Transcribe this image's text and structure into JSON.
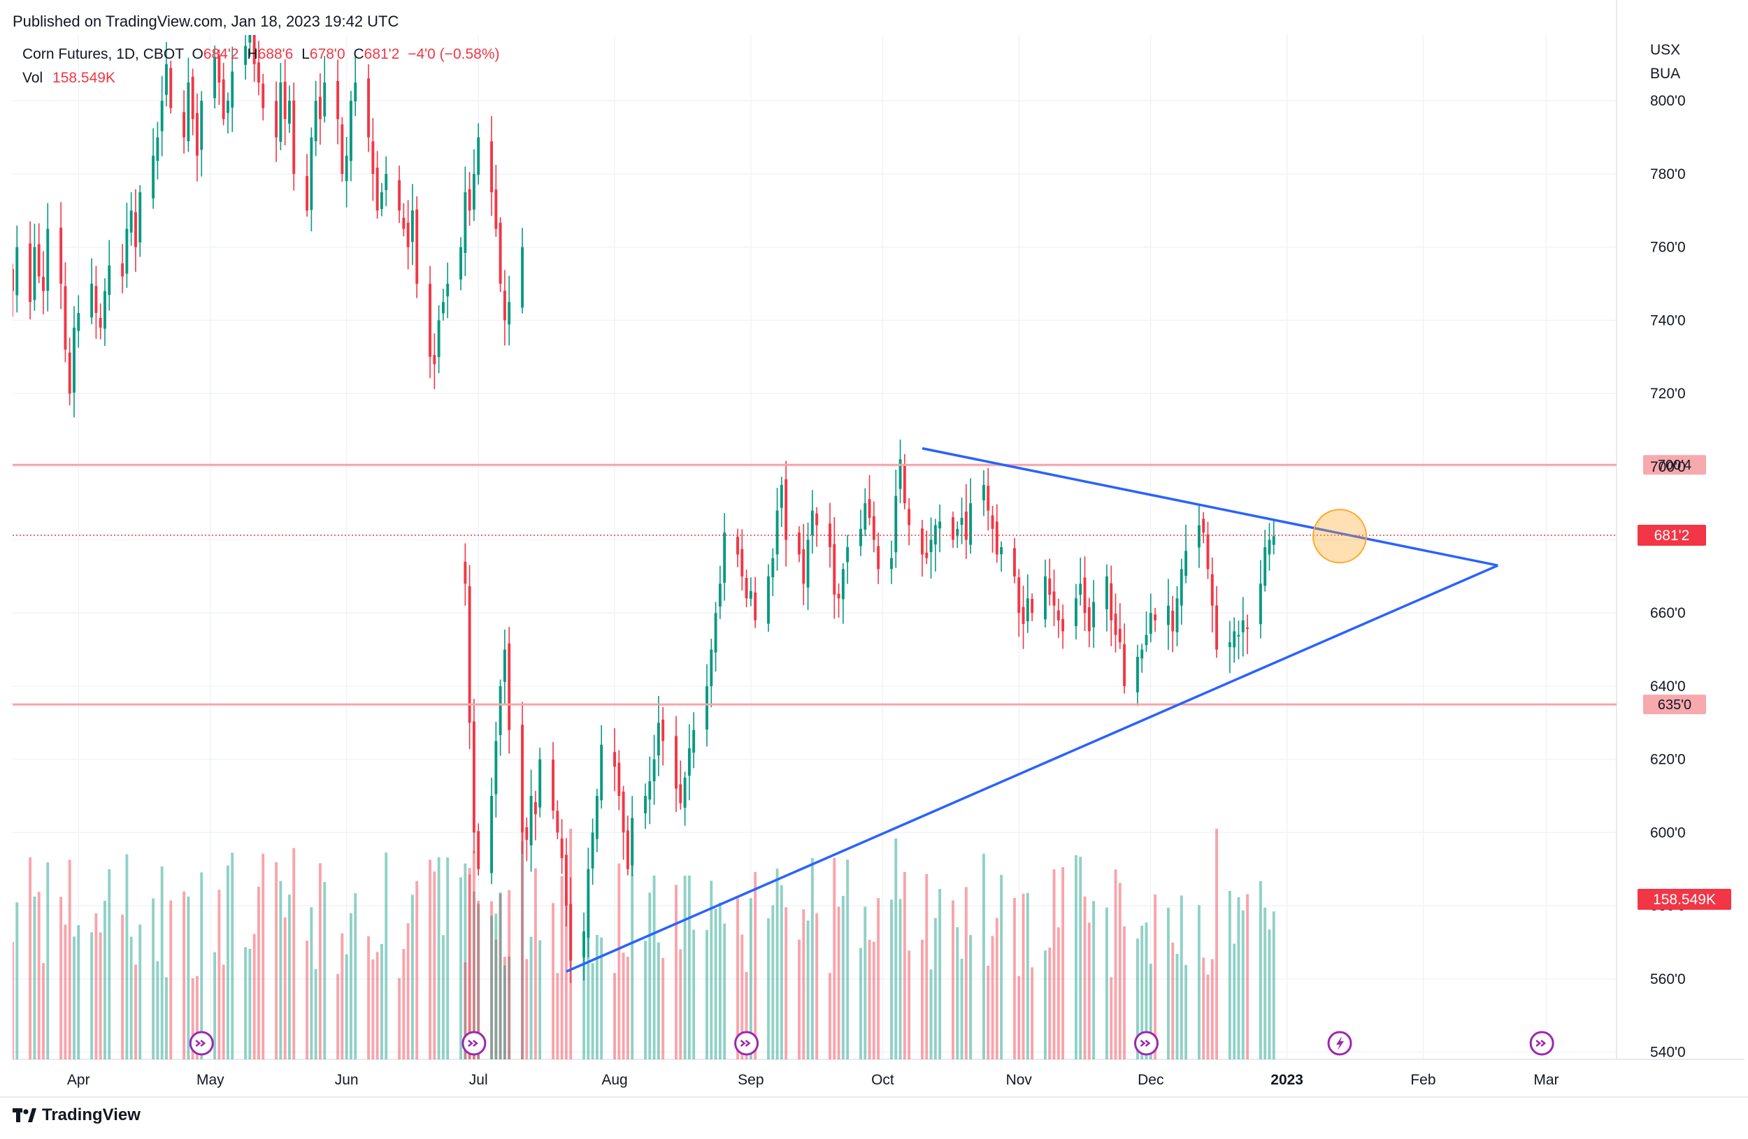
{
  "published": "Published on TradingView.com, Jan 18, 2023 19:42 UTC",
  "legend": {
    "symbol": "Corn Futures, 1D, CBOT",
    "o_label": "O",
    "o_value": "684'2",
    "h_label": "H",
    "h_value": "688'6",
    "l_label": "L",
    "l_value": "678'0",
    "c_label": "C",
    "c_value": "681'2",
    "change": "−4'0 (−0.58%)",
    "vol_label": "Vol",
    "vol_value": "158.549K"
  },
  "currency": "USX",
  "unit": "BUA",
  "footer_logo": "TradingView",
  "colors": {
    "up": "#089981",
    "down": "#f23645",
    "trend": "#2962ff",
    "level": "#f7a4a9",
    "event": "#9c27b0"
  },
  "chart_data": {
    "type": "candlestick",
    "title": "Corn Futures, 1D, CBOT",
    "y_ticks": [
      "800'0",
      "780'0",
      "760'0",
      "740'0",
      "720'0",
      "700'0",
      "680'0",
      "660'0",
      "640'0",
      "620'0",
      "600'0",
      "580'0",
      "560'0",
      "540'0"
    ],
    "y_tick_values": [
      800,
      780,
      760,
      740,
      720,
      700,
      680,
      660,
      640,
      620,
      600,
      580,
      560,
      540
    ],
    "ylim": [
      538,
      818
    ],
    "x_ticks": [
      {
        "label": "Apr",
        "date": "2022-04-01",
        "bold": false
      },
      {
        "label": "May",
        "date": "2022-05-01",
        "bold": false
      },
      {
        "label": "Jun",
        "date": "2022-06-01",
        "bold": false
      },
      {
        "label": "Jul",
        "date": "2022-07-01",
        "bold": false
      },
      {
        "label": "Aug",
        "date": "2022-08-01",
        "bold": false
      },
      {
        "label": "Sep",
        "date": "2022-09-01",
        "bold": false
      },
      {
        "label": "Oct",
        "date": "2022-10-01",
        "bold": false
      },
      {
        "label": "Nov",
        "date": "2022-11-01",
        "bold": false
      },
      {
        "label": "Dec",
        "date": "2022-12-01",
        "bold": false
      },
      {
        "label": "2023",
        "date": "2023-01-01",
        "bold": true
      },
      {
        "label": "Feb",
        "date": "2023-02-01",
        "bold": false
      },
      {
        "label": "Mar",
        "date": "2023-03-01",
        "bold": false
      }
    ],
    "xlim": [
      "2022-03-17",
      "2023-03-17"
    ],
    "horizontal_levels": [
      {
        "label": "700'4",
        "value": 700.5
      },
      {
        "label": "635'0",
        "value": 635
      }
    ],
    "last_price": {
      "label": "681'2",
      "value": 681.25
    },
    "volume_label": "158.549K",
    "trend_lines": [
      {
        "from": {
          "date": "2022-10-10",
          "price": 705
        },
        "to": {
          "date": "2023-02-18",
          "price": 673
        }
      },
      {
        "from": {
          "date": "2022-07-21",
          "price": 562
        },
        "to": {
          "date": "2023-02-18",
          "price": 673
        }
      }
    ],
    "highlight": {
      "date": "2023-01-13",
      "price": 681
    },
    "event_markers": [
      {
        "date": "2022-04-29",
        "type": "rollover"
      },
      {
        "date": "2022-06-30",
        "type": "rollover"
      },
      {
        "date": "2022-08-31",
        "type": "rollover"
      },
      {
        "date": "2022-11-30",
        "type": "rollover"
      },
      {
        "date": "2023-01-13",
        "type": "report"
      },
      {
        "date": "2023-02-28",
        "type": "rollover"
      }
    ],
    "segments": [
      {
        "name": "Mar–Jun 2022",
        "from": "2022-03-17",
        "closes": [
          748,
          760,
          745,
          760,
          752,
          748,
          765,
          750,
          732,
          720,
          738,
          742,
          750,
          742,
          738,
          748,
          755,
          752,
          765,
          770,
          760,
          775,
          785,
          790,
          800,
          810,
          798,
          790,
          805,
          795,
          785,
          800,
          812,
          805,
          795,
          800,
          808,
          815,
          822,
          810,
          805,
          798,
          790,
          805,
          795,
          800,
          780,
          770,
          790,
          800,
          795,
          805,
          795,
          780,
          785,
          800,
          805,
          790,
          780,
          770,
          775,
          780,
          770,
          765,
          760,
          770,
          750,
          730,
          728,
          740,
          745,
          750,
          760,
          775,
          770,
          780,
          790,
          775,
          765,
          750,
          740,
          745,
          760
        ]
      },
      {
        "name": "Jun 2022–Jan 2023",
        "from": "2022-06-28",
        "closes": [
          668,
          630,
          600,
          590,
          610,
          625,
          640,
          650,
          628,
          600,
          598,
          610,
          605,
          620,
          606,
          600,
          593,
          580,
          565,
          573,
          590,
          600,
          610,
          624,
          618,
          610,
          600,
          590,
          604,
          610,
          614,
          620,
          630,
          625,
          612,
          608,
          615,
          623,
          628,
          640,
          650,
          660,
          668,
          682,
          676,
          670,
          664,
          666,
          658,
          670,
          675,
          688,
          695,
          680,
          676,
          668,
          680,
          688,
          684,
          678,
          665,
          664,
          672,
          678,
          683,
          690,
          686,
          680,
          672,
          675,
          692,
          702,
          690,
          684,
          676,
          675,
          680,
          684,
          685,
          680,
          683,
          686,
          680,
          690,
          695,
          688,
          683,
          676,
          678,
          670,
          660,
          657,
          664,
          660,
          670,
          665,
          662,
          658,
          655,
          664,
          668,
          660,
          655,
          663,
          670,
          658,
          654,
          652,
          640,
          648,
          650,
          654,
          660,
          658,
          662,
          655,
          664,
          672,
          677,
          684,
          682,
          672,
          662,
          650,
          652,
          655,
          654,
          658,
          656,
          668,
          678,
          680,
          681
        ]
      }
    ],
    "seed": 7
  }
}
